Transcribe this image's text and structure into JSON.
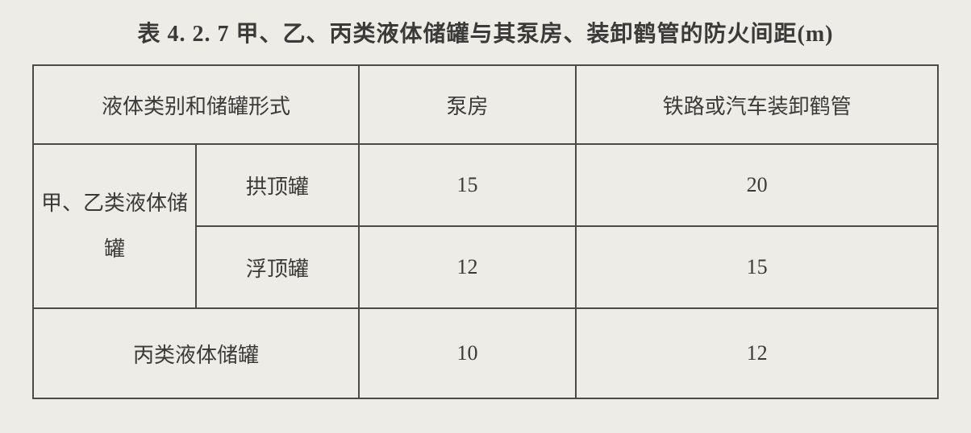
{
  "table": {
    "title": "表 4. 2. 7  甲、乙、丙类液体储罐与其泵房、装卸鹤管的防火间距(m)",
    "columns": [
      "液体类别和储罐形式",
      "泵房",
      "铁路或汽车装卸鹤管"
    ],
    "group1_label": "甲、乙类液体储罐",
    "rows": [
      {
        "tank_form": "拱顶罐",
        "pump_house": "15",
        "loading_arm": "20"
      },
      {
        "tank_form": "浮顶罐",
        "pump_house": "12",
        "loading_arm": "15"
      }
    ],
    "row3": {
      "category": "丙类液体储罐",
      "pump_house": "10",
      "loading_arm": "12"
    },
    "border_color": "#4a4a46",
    "background_color": "#eeece6",
    "text_color": "#3a3a38",
    "title_fontsize": 28,
    "cell_fontsize": 26
  }
}
